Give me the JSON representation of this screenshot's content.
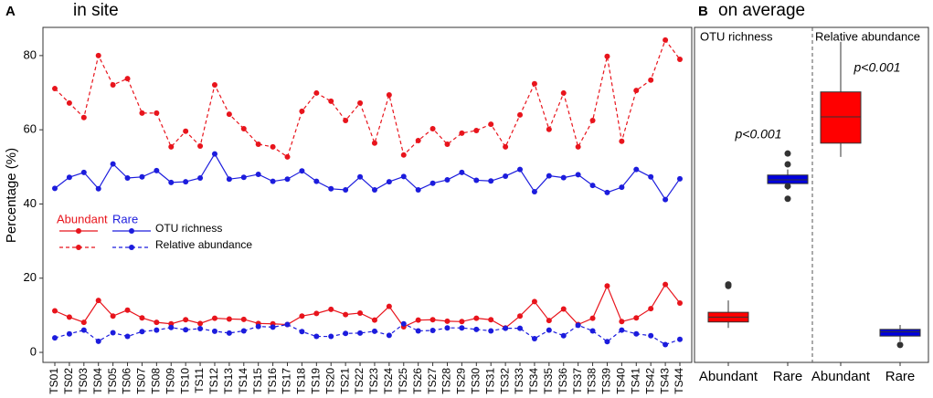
{
  "chart_data": [
    {
      "type": "line",
      "panel": "A",
      "title": "in site",
      "y_label": "Percentage (%)",
      "categories": [
        "TS01",
        "TS02",
        "TS03",
        "TS04",
        "TS05",
        "TS06",
        "TS07",
        "TS08",
        "TS09",
        "TS10",
        "TS11",
        "TS12",
        "TS13",
        "TS14",
        "TS15",
        "TS16",
        "TS17",
        "TS18",
        "TS19",
        "TS20",
        "TS21",
        "TS22",
        "TS23",
        "TS24",
        "TS25",
        "TS26",
        "TS27",
        "TS28",
        "TS29",
        "TS30",
        "TS31",
        "TS32",
        "TS33",
        "TS34",
        "TS35",
        "TS36",
        "TS37",
        "TS38",
        "TS39",
        "TS40",
        "TS41",
        "TS42",
        "TS43",
        "TS44"
      ],
      "ylim": [
        -2.7,
        87.6
      ],
      "yticks": [
        0,
        20,
        40,
        60,
        80
      ],
      "groups": [
        {
          "name": "Abundant",
          "color": "#e8141c",
          "series": [
            {
              "name": "OTU richness",
              "style": "solid",
              "values": [
                11.2,
                9.5,
                8.1,
                14,
                9.8,
                11.4,
                9.3,
                8.1,
                7.7,
                8.8,
                7.8,
                9.2,
                9,
                8.9,
                7.8,
                7.7,
                7.5,
                9.8,
                10.5,
                11.6,
                10.2,
                10.6,
                8.7,
                12.4,
                6.9,
                8.7,
                8.8,
                8.4,
                8.3,
                9.2,
                8.8,
                6.6,
                9.8,
                13.7,
                8.6,
                11.7,
                7.5,
                9.2,
                17.9,
                8.3,
                9.3,
                11.8,
                18.3,
                13.3
              ]
            },
            {
              "name": "Relative abundance",
              "style": "dashed",
              "values": [
                71.1,
                67.2,
                63.3,
                80,
                72.1,
                73.8,
                64.5,
                64.5,
                55.4,
                59.6,
                55.6,
                72.1,
                64.2,
                60.3,
                56.1,
                55.4,
                52.7,
                65,
                69.9,
                67.7,
                62.5,
                67.2,
                56.4,
                69.4,
                53.2,
                57.1,
                60.3,
                56.1,
                59.1,
                59.8,
                61.5,
                55.4,
                64,
                72.4,
                60.1,
                69.9,
                55.4,
                62.5,
                79.8,
                56.9,
                70.6,
                73.4,
                84.2,
                79
              ]
            }
          ]
        },
        {
          "name": "Rare",
          "color": "#1c1cdd",
          "series": [
            {
              "name": "OTU richness",
              "style": "solid",
              "values": [
                44.2,
                47.2,
                48.5,
                44.1,
                50.8,
                47,
                47.3,
                49,
                45.8,
                46,
                47,
                53.5,
                46.7,
                47.2,
                48,
                46.1,
                46.7,
                48.9,
                46.1,
                44.1,
                43.8,
                47.3,
                43.8,
                46,
                47.4,
                43.8,
                45.6,
                46.5,
                48.5,
                46.4,
                46.2,
                47.5,
                49.3,
                43.3,
                47.6,
                47.1,
                47.9,
                45,
                43.1,
                44.5,
                49.3,
                47.3,
                41.2,
                46.8
              ]
            },
            {
              "name": "Relative abundance",
              "style": "dashed",
              "values": [
                3.9,
                5,
                6,
                3,
                5.3,
                4.3,
                5.6,
                6,
                6.7,
                6.1,
                6.4,
                5.7,
                5.2,
                5.8,
                7,
                6.8,
                7.5,
                5.6,
                4.3,
                4.3,
                5.1,
                5.2,
                5.7,
                4.6,
                7.7,
                5.8,
                5.9,
                6.6,
                6.6,
                6.2,
                5.8,
                6.5,
                6.5,
                3.7,
                6,
                4.5,
                7.3,
                5.8,
                2.9,
                6,
                5,
                4.5,
                2.1,
                3.5
              ]
            }
          ]
        }
      ]
    },
    {
      "type": "box",
      "panel": "B",
      "title": "on average",
      "ylim": [
        -2.7,
        87.6
      ],
      "facets": [
        {
          "name": "OTU richness",
          "annotation": "p<0.001",
          "boxes": [
            {
              "category": "Abundant",
              "color": "#ff0000",
              "whislo": 6.6,
              "q1": 8.2,
              "med": 9.5,
              "q3": 10.8,
              "whishi": 14,
              "fliers": [
                17.9,
                18.3
              ]
            },
            {
              "category": "Rare",
              "color": "#0000dd",
              "whislo": 43.8,
              "q1": 45.5,
              "med": 46.5,
              "q3": 47.8,
              "whishi": 49.3,
              "fliers": [
                53.6,
                50.7,
                44.8,
                41.4
              ]
            }
          ]
        },
        {
          "name": "Relative abundance",
          "annotation": "p<0.001",
          "boxes": [
            {
              "category": "Abundant",
              "color": "#ff0000",
              "whislo": 52.7,
              "q1": 56.4,
              "med": 63.5,
              "q3": 70.2,
              "whishi": 83.7,
              "fliers": []
            },
            {
              "category": "Rare",
              "color": "#0000dd",
              "whislo": 3,
              "q1": 4.4,
              "med": 5.5,
              "q3": 6.2,
              "whishi": 7.4,
              "fliers": [
                2
              ]
            }
          ]
        }
      ]
    }
  ]
}
